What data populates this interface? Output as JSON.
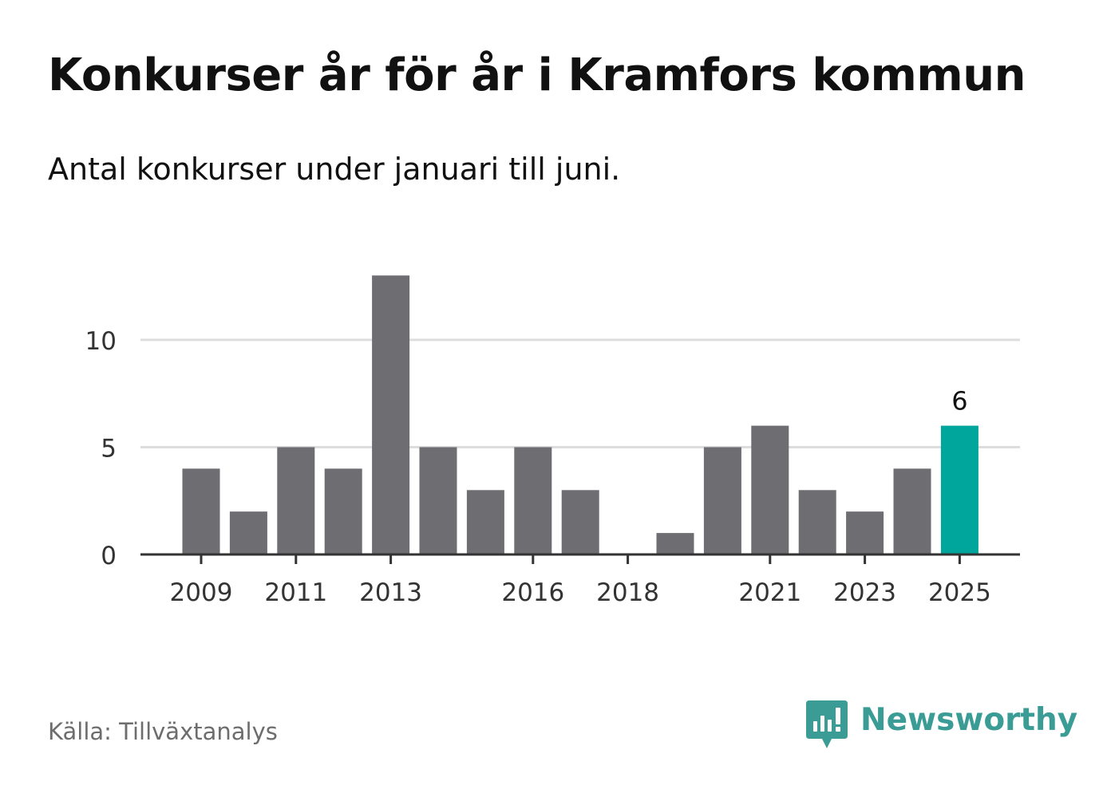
{
  "chart_data": {
    "type": "bar",
    "title": "Konkurser år för år i Kramfors kommun",
    "subtitle": "Antal konkurser under januari till juni.",
    "categories": [
      "2009",
      "2010",
      "2011",
      "2012",
      "2013",
      "2014",
      "2015",
      "2016",
      "2017",
      "2018",
      "2019",
      "2020",
      "2021",
      "2022",
      "2023",
      "2024",
      "2025"
    ],
    "values": [
      4,
      2,
      5,
      4,
      13,
      5,
      3,
      5,
      3,
      0,
      1,
      5,
      6,
      3,
      2,
      4,
      6
    ],
    "x_tick_labels": [
      "2009",
      "2011",
      "2013",
      "2016",
      "2018",
      "2021",
      "2023",
      "2025"
    ],
    "y_ticks": [
      0,
      5,
      10
    ],
    "ylim": [
      0,
      13
    ],
    "grid": true,
    "highlight": {
      "category": "2025",
      "label": "6"
    },
    "colors": {
      "bar": "#6e6d72",
      "highlight": "#00a59b",
      "grid": "#dddddd",
      "axis": "#333333"
    }
  },
  "footer": {
    "source": "Källa: Tillväxtanalys",
    "brand": "Newsworthy",
    "brand_icon": "newsworthy-logo-icon",
    "brand_color": "#3a9c95"
  }
}
